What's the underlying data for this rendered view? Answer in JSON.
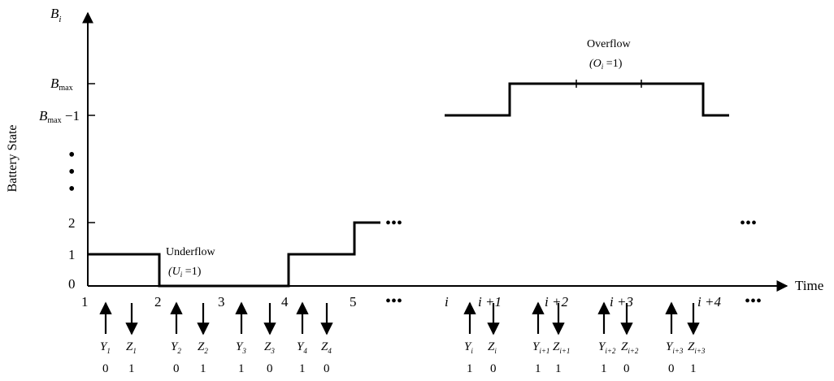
{
  "diagram": {
    "y_axis": {
      "symbol": "B",
      "subscript": "i",
      "title": "Battery State"
    },
    "x_axis": {
      "title": "Time"
    },
    "y_levels": [
      {
        "id": "0",
        "label": "0"
      },
      {
        "id": "1",
        "label": "1"
      },
      {
        "id": "2",
        "label": "2"
      },
      {
        "id": "bmax_minus_1",
        "label_main": "B",
        "label_sub": "max",
        "label_suffix": " −1"
      },
      {
        "id": "bmax",
        "label_main": "B",
        "label_sub": "max",
        "label_suffix": ""
      }
    ],
    "time_labels": [
      "1",
      "2",
      "3",
      "4",
      "5",
      "i",
      "i +1",
      "i +2",
      "i +3",
      "i +4"
    ],
    "ellipsis": "•••",
    "vertical_ellipsis": "•",
    "annotations": {
      "underflow": {
        "title": "Underflow",
        "condition": "(U",
        "cond_sub": "i",
        "cond_rest": " =1)"
      },
      "overflow": {
        "title": "Overflow",
        "condition": "(O",
        "cond_sub": "i",
        "cond_rest": " =1)"
      }
    },
    "slots": [
      {
        "y_var": "Y",
        "y_sub": "1",
        "y_val": "0",
        "z_var": "Z",
        "z_sub": "1",
        "z_val": "1"
      },
      {
        "y_var": "Y",
        "y_sub": "2",
        "y_val": "0",
        "z_var": "Z",
        "z_sub": "2",
        "z_val": "1"
      },
      {
        "y_var": "Y",
        "y_sub": "3",
        "y_val": "1",
        "z_var": "Z",
        "z_sub": "3",
        "z_val": "0"
      },
      {
        "y_var": "Y",
        "y_sub": "4",
        "y_val": "1",
        "z_var": "Z",
        "z_sub": "4",
        "z_val": "0"
      },
      {
        "y_var": "Y",
        "y_sub": "i",
        "y_val": "1",
        "z_var": "Z",
        "z_sub": "i",
        "z_val": "0"
      },
      {
        "y_var": "Y",
        "y_sub": "i+1",
        "y_val": "1",
        "z_var": "Z",
        "z_sub": "i+1",
        "z_val": "1"
      },
      {
        "y_var": "Y",
        "y_sub": "i+2",
        "y_val": "1",
        "z_var": "Z",
        "z_sub": "i+2",
        "z_val": "0"
      },
      {
        "y_var": "Y",
        "y_sub": "i+3",
        "y_val": "0",
        "z_var": "Z",
        "z_sub": "i+3",
        "z_val": "1"
      }
    ],
    "colors": {
      "ink": "#000000",
      "background": "#ffffff"
    }
  }
}
